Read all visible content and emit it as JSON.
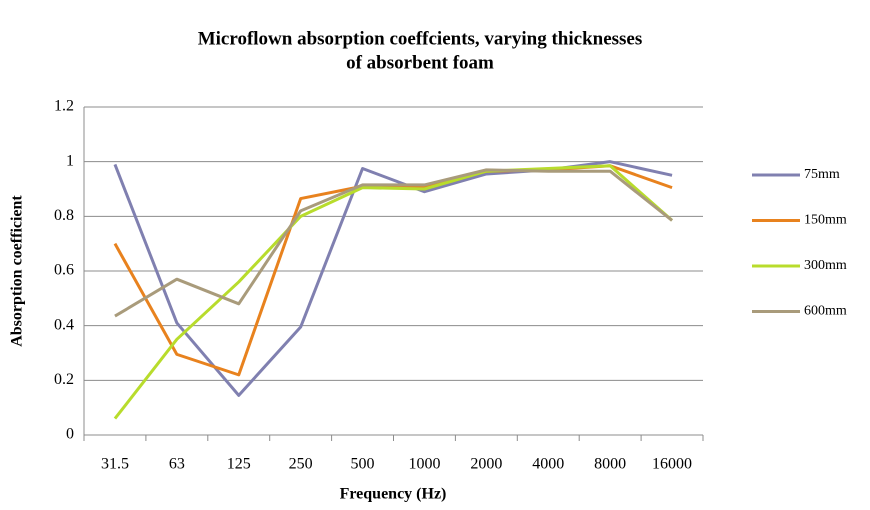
{
  "chart_data": {
    "type": "line",
    "title": "Microflown absorption coeffcients, varying thicknesses of absorbent foam",
    "title_lines": [
      "Microflown absorption coeffcients, varying thicknesses",
      "of absorbent foam"
    ],
    "x_label": "Frequency (Hz)",
    "y_label": "Absorption coefficient",
    "categories": [
      "31.5",
      "63",
      "125",
      "250",
      "500",
      "1000",
      "2000",
      "4000",
      "8000",
      "16000"
    ],
    "series": [
      {
        "name": "75mm",
        "color": "#8080b0",
        "values": [
          0.99,
          0.41,
          0.145,
          0.395,
          0.975,
          0.89,
          0.955,
          0.97,
          1.0,
          0.95
        ]
      },
      {
        "name": "150mm",
        "color": "#e8821e",
        "values": [
          0.7,
          0.295,
          0.22,
          0.865,
          0.91,
          0.905,
          0.965,
          0.97,
          0.985,
          0.905
        ]
      },
      {
        "name": "300mm",
        "color": "#b8dc2c",
        "values": [
          0.06,
          0.35,
          0.56,
          0.8,
          0.905,
          0.9,
          0.965,
          0.975,
          0.985,
          0.785
        ]
      },
      {
        "name": "600mm",
        "color": "#a99b7b",
        "values": [
          0.435,
          0.57,
          0.48,
          0.82,
          0.915,
          0.915,
          0.97,
          0.965,
          0.965,
          0.785
        ]
      }
    ],
    "ylim": [
      0,
      1.2
    ],
    "yticks": [
      0,
      0.2,
      0.4,
      0.6,
      0.8,
      1,
      1.2
    ],
    "grid": true,
    "legend": "right"
  }
}
